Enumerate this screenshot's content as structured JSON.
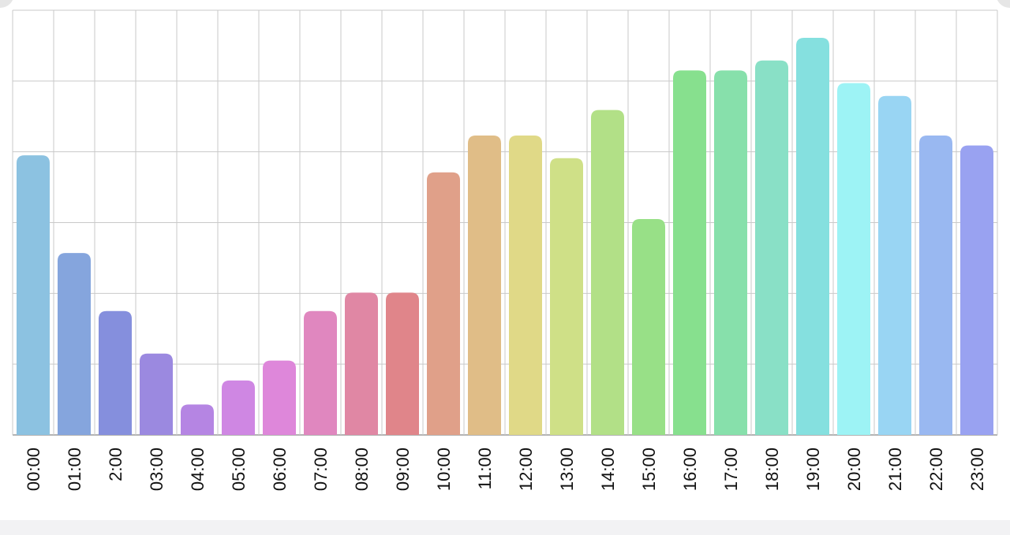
{
  "chart_data": {
    "type": "bar",
    "title": "",
    "xlabel": "",
    "ylabel": "",
    "grid": true,
    "legend": "none",
    "ylim": [
      0,
      6
    ],
    "categories": [
      "00:00",
      "01:00",
      "2:00",
      "03:00",
      "04:00",
      "05:00",
      "06:00",
      "07:00",
      "08:00",
      "09:00",
      "10:00",
      "11:00",
      "12:00",
      "13:00",
      "14:00",
      "15:00",
      "16:00",
      "17:00",
      "18:00",
      "19:00",
      "20:00",
      "21:00",
      "22:00",
      "23:00"
    ],
    "values": [
      3.95,
      2.57,
      1.75,
      1.15,
      0.43,
      0.77,
      1.05,
      1.75,
      2.01,
      2.01,
      3.71,
      4.23,
      4.23,
      3.91,
      4.59,
      3.05,
      5.15,
      5.15,
      5.29,
      5.61,
      4.97,
      4.79,
      4.23,
      4.09
    ],
    "colors": [
      "#8cc2e1",
      "#85a5dd",
      "#858fdd",
      "#9b89e0",
      "#b585e3",
      "#cf87e3",
      "#de87da",
      "#e087bf",
      "#e087a4",
      "#e0858a",
      "#e0a089",
      "#e0bd87",
      "#e0d987",
      "#cfe087",
      "#b2e087",
      "#98e087",
      "#87e08e",
      "#87e0ab",
      "#89e0c6",
      "#85e0df",
      "#9df3f5",
      "#99d5f3",
      "#99b8f1",
      "#99a2f1"
    ]
  }
}
